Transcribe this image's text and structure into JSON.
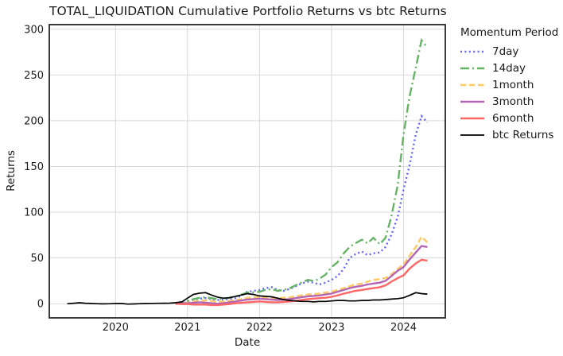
{
  "chart_data": {
    "type": "line",
    "title": "TOTAL_LIQUIDATION Cumulative Portfolio Returns vs btc Returns",
    "xlabel": "Date",
    "ylabel": "Returns",
    "legend_title": "Momentum Period",
    "legend_position": "outside-right",
    "grid": true,
    "xlim": [
      2019.08,
      2024.58
    ],
    "ylim": [
      -15.5,
      305
    ],
    "x_ticks": [
      2020,
      2021,
      2022,
      2023,
      2024
    ],
    "y_ticks": [
      0,
      50,
      100,
      150,
      200,
      250,
      300
    ],
    "x": [
      2019.33,
      2019.42,
      2019.5,
      2019.58,
      2019.67,
      2019.75,
      2019.83,
      2019.92,
      2020,
      2020.08,
      2020.17,
      2020.25,
      2020.33,
      2020.42,
      2020.5,
      2020.58,
      2020.67,
      2020.75,
      2020.83,
      2020.92,
      2021,
      2021.08,
      2021.17,
      2021.25,
      2021.33,
      2021.42,
      2021.5,
      2021.58,
      2021.67,
      2021.75,
      2021.83,
      2021.92,
      2022,
      2022.08,
      2022.17,
      2022.25,
      2022.33,
      2022.42,
      2022.5,
      2022.58,
      2022.67,
      2022.75,
      2022.83,
      2022.92,
      2023,
      2023.08,
      2023.17,
      2023.25,
      2023.33,
      2023.42,
      2023.5,
      2023.58,
      2023.67,
      2023.75,
      2023.83,
      2023.92,
      2024,
      2024.08,
      2024.17,
      2024.25,
      2024.33
    ],
    "series": [
      {
        "name": "7day",
        "color": "#6666ff",
        "style": "dotted",
        "values": [
          null,
          null,
          null,
          null,
          null,
          null,
          null,
          null,
          null,
          null,
          null,
          null,
          null,
          null,
          null,
          null,
          null,
          null,
          0,
          0.5,
          2,
          4.5,
          5.5,
          6,
          5,
          4,
          4.5,
          5,
          6,
          9,
          13,
          14,
          15,
          17,
          18,
          15,
          14,
          16,
          19,
          22,
          24,
          23,
          21,
          23,
          26,
          30,
          38,
          50,
          54,
          57,
          53,
          55,
          56,
          62,
          75,
          95,
          125,
          150,
          185,
          205,
          198
        ]
      },
      {
        "name": "14day",
        "color": "#66b366",
        "style": "dashdot",
        "values": [
          null,
          null,
          null,
          null,
          null,
          null,
          null,
          null,
          null,
          null,
          null,
          null,
          null,
          null,
          null,
          null,
          null,
          null,
          0,
          1,
          3,
          5,
          6.5,
          7,
          6,
          5,
          5.5,
          6.5,
          8,
          10,
          12,
          12.5,
          13,
          15,
          16,
          14,
          15,
          17,
          20,
          23,
          26,
          25,
          27,
          32,
          40,
          45,
          55,
          62,
          66,
          70,
          66,
          72,
          65,
          72,
          95,
          130,
          185,
          225,
          258,
          288,
          280
        ]
      },
      {
        "name": "1month",
        "color": "#ffc966",
        "style": "dashed",
        "values": [
          null,
          null,
          null,
          null,
          null,
          null,
          null,
          null,
          null,
          null,
          null,
          null,
          null,
          null,
          null,
          null,
          null,
          null,
          0,
          0.5,
          1,
          2.5,
          3,
          3.5,
          3,
          2,
          2.5,
          3,
          4,
          5,
          6.5,
          7,
          7.5,
          7,
          6.5,
          6,
          6.5,
          7,
          8,
          9,
          10,
          10.5,
          11,
          12,
          13,
          15,
          17,
          19,
          21,
          22,
          24,
          26,
          27,
          28,
          32,
          38,
          43,
          52,
          62,
          73,
          67
        ]
      },
      {
        "name": "3month",
        "color": "#b366b3",
        "style": "solid",
        "values": [
          null,
          null,
          null,
          null,
          null,
          null,
          null,
          null,
          null,
          null,
          null,
          null,
          null,
          null,
          null,
          null,
          null,
          null,
          0,
          0.3,
          0.5,
          1,
          1.5,
          1,
          0.5,
          0,
          0.5,
          1.5,
          2.5,
          3.5,
          4.5,
          5,
          5.5,
          5,
          4.5,
          4,
          4.5,
          5,
          6,
          7,
          8,
          8.5,
          9,
          10,
          11,
          13,
          15,
          17,
          18.5,
          19.5,
          21,
          22,
          23,
          25,
          30,
          36,
          40,
          48,
          56,
          63,
          62
        ]
      },
      {
        "name": "6month",
        "color": "#ff6666",
        "style": "solid",
        "values": [
          null,
          null,
          null,
          null,
          null,
          null,
          null,
          null,
          null,
          null,
          null,
          null,
          null,
          null,
          null,
          null,
          null,
          null,
          0,
          -0.5,
          -0.5,
          -1,
          -1,
          -1,
          -1.5,
          -1.5,
          -1,
          -0.5,
          0.5,
          1,
          1.5,
          2,
          2.5,
          2,
          1.5,
          1.5,
          2,
          2.5,
          3,
          4,
          5,
          5.5,
          6,
          6.5,
          7.5,
          9,
          11,
          12.5,
          14,
          15,
          16,
          17,
          18,
          20,
          24,
          28,
          31,
          38,
          44,
          48,
          47
        ]
      },
      {
        "name": "btc Returns",
        "color": "#000000",
        "style": "solid",
        "values": [
          0,
          0.5,
          1,
          0.5,
          0.2,
          0,
          -0.2,
          0,
          0.3,
          0.2,
          -0.5,
          -0.3,
          0,
          0.2,
          0.3,
          0.4,
          0.5,
          0.6,
          1,
          2,
          6,
          10,
          11.5,
          12,
          9.5,
          7,
          6,
          6.5,
          8,
          9.5,
          11,
          10,
          8.5,
          8,
          7.5,
          6,
          4.5,
          3.5,
          3,
          2.5,
          2.5,
          2,
          2.5,
          2.5,
          3,
          3.5,
          3.5,
          3,
          3,
          3.5,
          3.5,
          4,
          4,
          4.5,
          5,
          5.5,
          6.5,
          9,
          12,
          11,
          10.5
        ]
      }
    ]
  }
}
